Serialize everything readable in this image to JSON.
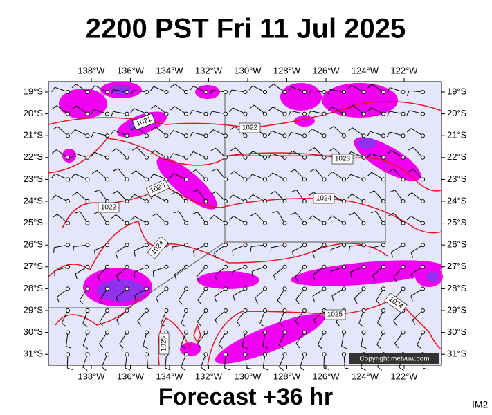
{
  "title": "2200 PST Fri 11 Jul 2025",
  "footer": "Forecast +36 hr",
  "corner_label": "IM2",
  "copyright": "Copyright metvuw.com",
  "longitude_labels": [
    "138°W",
    "136°W",
    "134°W",
    "132°W",
    "130°W",
    "128°W",
    "126°W",
    "124°W",
    "122°W"
  ],
  "latitude_labels": [
    "19°S",
    "20°S",
    "21°S",
    "22°S",
    "23°S",
    "24°S",
    "25°S",
    "26°S",
    "27°S",
    "28°S",
    "29°S",
    "30°S",
    "31°S"
  ],
  "isobar_labels": [
    "1021",
    "1022",
    "1023",
    "1023",
    "1022",
    "1024",
    "1024",
    "1024",
    "1025",
    "1025"
  ]
}
